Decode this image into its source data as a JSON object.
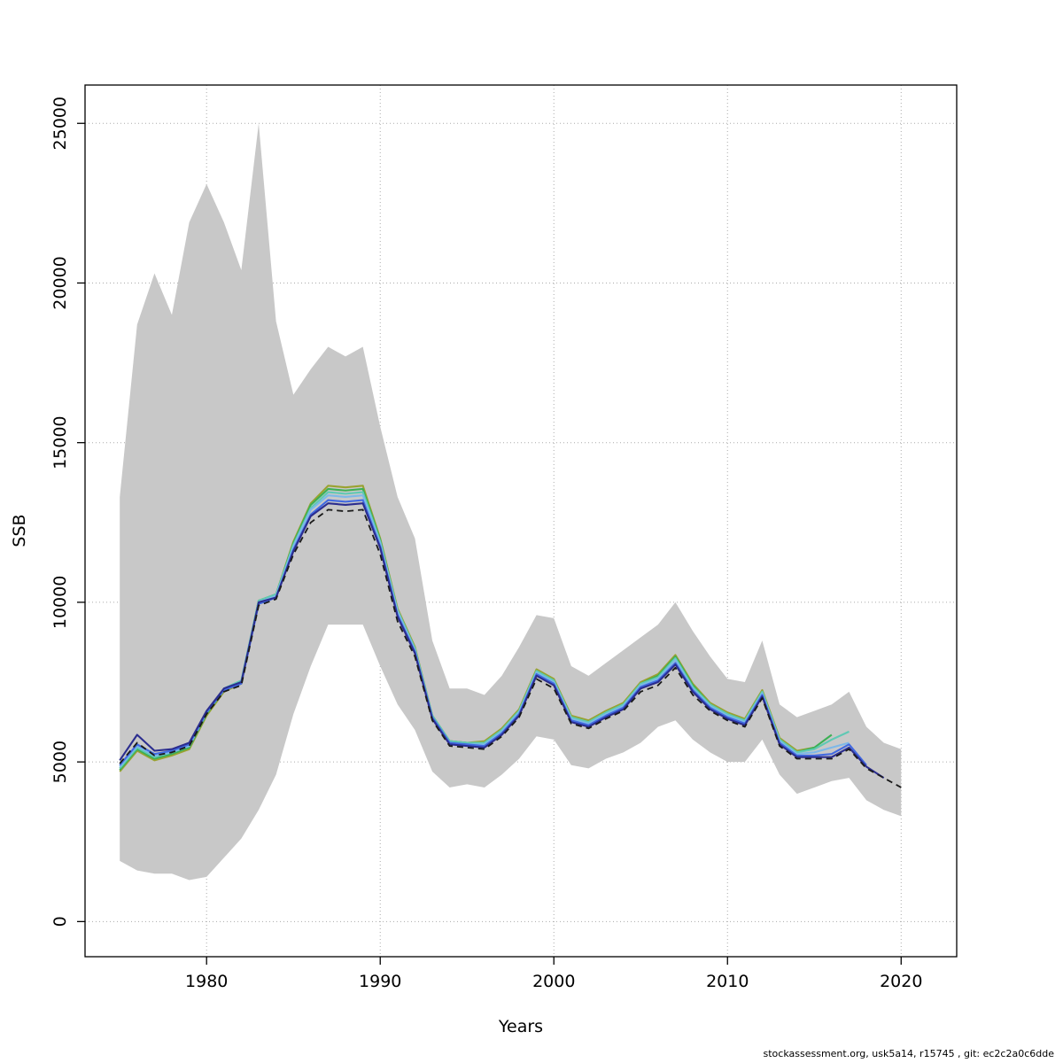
{
  "page": {
    "footer": "stockassessment.org, usk5a14, r15745 , git: ec2c2a0c6dde"
  },
  "chart_data": {
    "type": "line",
    "title": "",
    "xlabel": "Years",
    "ylabel": "SSB",
    "xlim": [
      1973.0,
      2023.2
    ],
    "ylim": [
      -1100,
      26200
    ],
    "x_ticks": [
      1980,
      1990,
      2000,
      2010,
      2020
    ],
    "y_ticks": [
      0,
      5000,
      10000,
      15000,
      20000,
      25000
    ],
    "grid": "dotted",
    "grid_color": "#aaaaaa",
    "legend": "none",
    "years": [
      1975,
      1976,
      1977,
      1978,
      1979,
      1980,
      1981,
      1982,
      1983,
      1984,
      1985,
      1986,
      1987,
      1988,
      1989,
      1990,
      1991,
      1992,
      1993,
      1994,
      1995,
      1996,
      1997,
      1998,
      1999,
      2000,
      2001,
      2002,
      2003,
      2004,
      2005,
      2006,
      2007,
      2008,
      2009,
      2010,
      2011,
      2012,
      2013,
      2014,
      2015,
      2016,
      2017,
      2018,
      2019,
      2020
    ],
    "band": {
      "color": "#c8c8c8",
      "upper": [
        13300,
        18700,
        20300,
        19000,
        21900,
        23100,
        21900,
        20400,
        25000,
        18800,
        16500,
        17300,
        18000,
        17700,
        18000,
        15500,
        13300,
        12000,
        8800,
        7300,
        7300,
        7100,
        7700,
        8600,
        9600,
        9500,
        8000,
        7700,
        8100,
        8500,
        8900,
        9300,
        10000,
        9100,
        8300,
        7600,
        7500,
        8800,
        6800,
        6400,
        6600,
        6800,
        7200,
        6100,
        5600,
        5400
      ],
      "lower": [
        1900,
        1600,
        1500,
        1500,
        1300,
        1400,
        2000,
        2600,
        3500,
        4600,
        6500,
        8000,
        9300,
        9300,
        9300,
        8000,
        6800,
        6000,
        4700,
        4200,
        4300,
        4200,
        4600,
        5100,
        5800,
        5700,
        4900,
        4800,
        5100,
        5300,
        5600,
        6100,
        6300,
        5700,
        5300,
        5000,
        5000,
        5700,
        4600,
        4000,
        4200,
        4400,
        4500,
        3800,
        3500,
        3300
      ]
    },
    "series": [
      {
        "color": "#9aa230",
        "dash": false,
        "start_year": 1975,
        "values": [
          4700,
          5350,
          5050,
          5200,
          5400,
          6450,
          7200,
          7450,
          10050,
          10250,
          11900,
          13100,
          13650,
          13600,
          13650,
          12000,
          9800,
          8600,
          6450,
          5650,
          5600,
          5650,
          6050,
          6650,
          7900,
          7600,
          6450,
          6300,
          6600,
          6850,
          7500,
          7750,
          8350,
          7450,
          6850,
          6550,
          6350,
          7250,
          5750,
          5350,
          5450
        ]
      },
      {
        "color": "#3cb054",
        "dash": false,
        "start_year": 1975,
        "values": [
          4750,
          5400,
          5100,
          5250,
          5450,
          6500,
          7250,
          7500,
          10050,
          10250,
          11850,
          13050,
          13550,
          13500,
          13550,
          11950,
          9750,
          8550,
          6450,
          5650,
          5600,
          5600,
          6000,
          6600,
          7850,
          7550,
          6400,
          6250,
          6550,
          6800,
          7450,
          7700,
          8300,
          7400,
          6800,
          6500,
          6300,
          7200,
          5700,
          5300,
          5450,
          5850
        ]
      },
      {
        "color": "#5fc9b4",
        "dash": false,
        "start_year": 1975,
        "values": [
          4800,
          5450,
          5150,
          5300,
          5500,
          6550,
          7300,
          7550,
          10050,
          10250,
          11800,
          12950,
          13450,
          13400,
          13450,
          11900,
          9750,
          8550,
          6450,
          5650,
          5600,
          5600,
          6000,
          6600,
          7850,
          7550,
          6400,
          6250,
          6550,
          6800,
          7450,
          7650,
          8250,
          7350,
          6800,
          6500,
          6300,
          7200,
          5700,
          5300,
          5400,
          5700,
          5950
        ]
      },
      {
        "color": "#7db8e8",
        "dash": false,
        "start_year": 1975,
        "values": [
          4850,
          5500,
          5200,
          5300,
          5500,
          6550,
          7250,
          7500,
          10000,
          10200,
          11750,
          12900,
          13350,
          13300,
          13350,
          11850,
          9700,
          8500,
          6400,
          5600,
          5550,
          5550,
          5950,
          6550,
          7800,
          7500,
          6350,
          6200,
          6500,
          6750,
          7400,
          7600,
          8200,
          7300,
          6750,
          6450,
          6250,
          7150,
          5650,
          5250,
          5300,
          5450,
          5600
        ]
      },
      {
        "color": "#4169e1",
        "dash": false,
        "start_year": 1975,
        "values": [
          4900,
          5550,
          5250,
          5350,
          5550,
          6550,
          7250,
          7450,
          9950,
          10150,
          11650,
          12750,
          13200,
          13150,
          13200,
          11750,
          9600,
          8450,
          6400,
          5600,
          5550,
          5500,
          5900,
          6500,
          7750,
          7450,
          6300,
          6150,
          6450,
          6700,
          7350,
          7550,
          8100,
          7250,
          6700,
          6400,
          6200,
          7100,
          5600,
          5200,
          5200,
          5250,
          5550,
          4900
        ]
      },
      {
        "color": "#2b2d8f",
        "dash": false,
        "start_year": 1975,
        "values": [
          5050,
          5850,
          5350,
          5400,
          5600,
          6600,
          7300,
          7500,
          10000,
          10150,
          11600,
          12700,
          13100,
          13050,
          13100,
          11700,
          9550,
          8400,
          6350,
          5550,
          5500,
          5450,
          5850,
          6450,
          7700,
          7400,
          6250,
          6100,
          6400,
          6650,
          7300,
          7500,
          8050,
          7200,
          6650,
          6350,
          6150,
          7050,
          5550,
          5150,
          5150,
          5150,
          5450,
          4850,
          4500
        ]
      },
      {
        "color": "#1a1a1a",
        "dash": true,
        "start_year": 1975,
        "values": [
          4950,
          5600,
          5200,
          5300,
          5500,
          6500,
          7200,
          7400,
          9900,
          10100,
          11500,
          12500,
          12900,
          12850,
          12900,
          11500,
          9400,
          8300,
          6300,
          5500,
          5450,
          5400,
          5800,
          6400,
          7600,
          7300,
          6200,
          6050,
          6350,
          6600,
          7200,
          7400,
          7950,
          7100,
          6600,
          6300,
          6100,
          7000,
          5500,
          5100,
          5100,
          5100,
          5400,
          4800,
          4500,
          4200
        ]
      }
    ]
  }
}
